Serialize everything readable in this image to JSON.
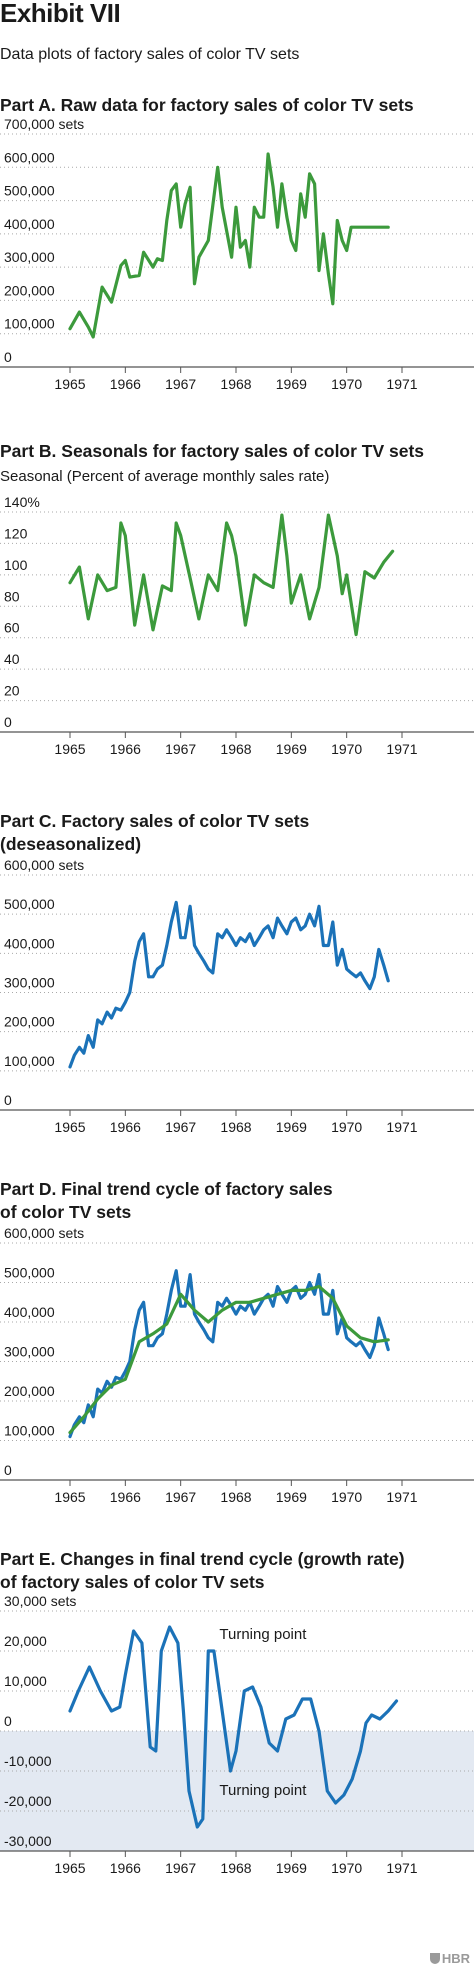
{
  "exhibit": {
    "title": "Exhibit VII",
    "subtitle": "Data plots of factory sales of color TV sets",
    "logo": "HBR"
  },
  "colors": {
    "green": "#3c9a3c",
    "blue": "#1b72b8",
    "grid": "#a9a9a9",
    "shade": "#e3e9f2"
  },
  "chart_data": [
    {
      "id": "A",
      "type": "line",
      "title": "Part A. Raw data for factory sales of color TV sets",
      "ylabel": "",
      "ylim": [
        0,
        700000
      ],
      "xlim": [
        1965,
        1972
      ],
      "yticks": [
        0,
        100000,
        200000,
        300000,
        400000,
        500000,
        600000,
        700000
      ],
      "ytick_labels": [
        "0",
        "100,000",
        "200,000",
        "300,000",
        "400,000",
        "500,000",
        "600,000",
        "700,000 sets"
      ],
      "xticks": [
        1965,
        1966,
        1967,
        1968,
        1969,
        1970,
        1971
      ],
      "xtick_labels": [
        "1965",
        "1966",
        "1967",
        "1968",
        "1969",
        "1970",
        "1971"
      ],
      "grid": true,
      "series": [
        {
          "color": "green",
          "x": [
            1965.0,
            1965.17,
            1965.33,
            1965.42,
            1965.58,
            1965.75,
            1965.92,
            1966.0,
            1966.08,
            1966.25,
            1966.33,
            1966.5,
            1966.58,
            1966.67,
            1966.75,
            1966.83,
            1966.92,
            1967.0,
            1967.08,
            1967.17,
            1967.25,
            1967.33,
            1967.5,
            1967.67,
            1967.75,
            1967.92,
            1968.0,
            1968.08,
            1968.17,
            1968.25,
            1968.33,
            1968.42,
            1968.5,
            1968.58,
            1968.67,
            1968.75,
            1968.83,
            1968.92,
            1969.0,
            1969.08,
            1969.17,
            1969.25,
            1969.33,
            1969.42,
            1969.5,
            1969.58,
            1969.67,
            1969.75,
            1969.83,
            1969.92,
            1970.0,
            1970.08,
            1970.17,
            1970.25,
            1970.33,
            1970.42,
            1970.5,
            1970.58,
            1970.75
          ],
          "y": [
            115000,
            165000,
            120000,
            90000,
            240000,
            195000,
            305000,
            320000,
            270000,
            275000,
            345000,
            300000,
            325000,
            320000,
            440000,
            530000,
            550000,
            420000,
            490000,
            540000,
            250000,
            330000,
            380000,
            600000,
            480000,
            330000,
            480000,
            360000,
            380000,
            300000,
            480000,
            450000,
            450000,
            640000,
            540000,
            420000,
            550000,
            450000,
            380000,
            350000,
            520000,
            450000,
            580000,
            550000,
            290000,
            400000,
            280000,
            190000,
            440000,
            380000,
            350000,
            420000,
            420000,
            420000,
            420000,
            420000,
            420000,
            420000,
            420000
          ]
        }
      ]
    },
    {
      "id": "B",
      "type": "line",
      "title": "Part B. Seasonals for factory sales of color TV sets",
      "ylabel": "Seasonal (Percent of average monthly sales rate)",
      "ylim": [
        0,
        140
      ],
      "xlim": [
        1965,
        1972
      ],
      "yticks": [
        0,
        20,
        40,
        60,
        80,
        100,
        120,
        140
      ],
      "ytick_labels": [
        "0",
        "20",
        "40",
        "60",
        "80",
        "100",
        "120",
        "140%"
      ],
      "xticks": [
        1965,
        1966,
        1967,
        1968,
        1969,
        1970,
        1971
      ],
      "xtick_labels": [
        "1965",
        "1966",
        "1967",
        "1968",
        "1969",
        "1970",
        "1971"
      ],
      "grid": true,
      "series": [
        {
          "color": "green",
          "x": [
            1965.0,
            1965.17,
            1965.33,
            1965.5,
            1965.67,
            1965.83,
            1965.92,
            1966.0,
            1966.17,
            1966.33,
            1966.5,
            1966.67,
            1966.83,
            1966.92,
            1967.0,
            1967.17,
            1967.33,
            1967.5,
            1967.67,
            1967.83,
            1967.92,
            1968.0,
            1968.17,
            1968.33,
            1968.5,
            1968.67,
            1968.83,
            1968.92,
            1969.0,
            1969.17,
            1969.33,
            1969.5,
            1969.67,
            1969.83,
            1969.92,
            1970.0,
            1970.17,
            1970.33,
            1970.5,
            1970.67,
            1970.83
          ],
          "y": [
            95,
            105,
            72,
            100,
            90,
            92,
            133,
            125,
            68,
            100,
            65,
            93,
            90,
            133,
            125,
            98,
            72,
            100,
            90,
            133,
            125,
            112,
            68,
            100,
            95,
            92,
            138,
            112,
            82,
            100,
            72,
            92,
            138,
            112,
            88,
            100,
            62,
            102,
            98,
            108,
            115
          ]
        }
      ]
    },
    {
      "id": "C",
      "type": "line",
      "title": "Part C. Factory sales of color TV sets (deseasonalized)",
      "title_lines": [
        "Part C. Factory sales of color TV sets",
        "(deseasonalized)"
      ],
      "ylabel": "",
      "ylim": [
        0,
        600000
      ],
      "xlim": [
        1965,
        1972
      ],
      "yticks": [
        0,
        100000,
        200000,
        300000,
        400000,
        500000,
        600000
      ],
      "ytick_labels": [
        "0",
        "100,000",
        "200,000",
        "300,000",
        "400,000",
        "500,000",
        "600,000 sets"
      ],
      "xticks": [
        1965,
        1966,
        1967,
        1968,
        1969,
        1970,
        1971
      ],
      "xtick_labels": [
        "1965",
        "1966",
        "1967",
        "1968",
        "1969",
        "1970",
        "1971"
      ],
      "grid": true,
      "series": [
        {
          "color": "blue",
          "x": [
            1965.0,
            1965.08,
            1965.17,
            1965.25,
            1965.33,
            1965.42,
            1965.5,
            1965.58,
            1965.67,
            1965.75,
            1965.83,
            1965.92,
            1966.0,
            1966.08,
            1966.17,
            1966.25,
            1966.33,
            1966.42,
            1966.5,
            1966.58,
            1966.67,
            1966.75,
            1966.83,
            1966.92,
            1967.0,
            1967.08,
            1967.17,
            1967.25,
            1967.33,
            1967.42,
            1967.5,
            1967.58,
            1967.67,
            1967.75,
            1967.83,
            1967.92,
            1968.0,
            1968.08,
            1968.17,
            1968.25,
            1968.33,
            1968.42,
            1968.5,
            1968.58,
            1968.67,
            1968.75,
            1968.83,
            1968.92,
            1969.0,
            1969.08,
            1969.17,
            1969.25,
            1969.33,
            1969.42,
            1969.5,
            1969.58,
            1969.67,
            1969.75,
            1969.83,
            1969.92,
            1970.0,
            1970.08,
            1970.17,
            1970.25,
            1970.33,
            1970.42,
            1970.5,
            1970.58,
            1970.67,
            1970.75
          ],
          "y": [
            110000,
            140000,
            160000,
            145000,
            190000,
            160000,
            230000,
            220000,
            250000,
            235000,
            260000,
            255000,
            275000,
            300000,
            380000,
            430000,
            450000,
            340000,
            340000,
            360000,
            370000,
            420000,
            480000,
            530000,
            440000,
            440000,
            520000,
            420000,
            400000,
            380000,
            360000,
            350000,
            450000,
            440000,
            460000,
            440000,
            420000,
            440000,
            430000,
            450000,
            420000,
            440000,
            460000,
            470000,
            440000,
            490000,
            470000,
            450000,
            480000,
            490000,
            460000,
            470000,
            500000,
            470000,
            520000,
            420000,
            420000,
            480000,
            370000,
            410000,
            360000,
            350000,
            340000,
            350000,
            330000,
            310000,
            340000,
            410000,
            370000,
            330000
          ]
        }
      ]
    },
    {
      "id": "D",
      "type": "line",
      "title": "Part D. Final trend cycle of factory sales of color TV sets",
      "title_lines": [
        "Part D. Final trend cycle of factory sales",
        "of color TV sets"
      ],
      "ylabel": "",
      "ylim": [
        0,
        600000
      ],
      "xlim": [
        1965,
        1972
      ],
      "yticks": [
        0,
        100000,
        200000,
        300000,
        400000,
        500000,
        600000
      ],
      "ytick_labels": [
        "0",
        "100,000",
        "200,000",
        "300,000",
        "400,000",
        "500,000",
        "600,000 sets"
      ],
      "xticks": [
        1965,
        1966,
        1967,
        1968,
        1969,
        1970,
        1971
      ],
      "xtick_labels": [
        "1965",
        "1966",
        "1967",
        "1968",
        "1969",
        "1970",
        "1971"
      ],
      "grid": true,
      "series": [
        {
          "color": "blue",
          "x": [
            1965.0,
            1965.08,
            1965.17,
            1965.25,
            1965.33,
            1965.42,
            1965.5,
            1965.58,
            1965.67,
            1965.75,
            1965.83,
            1965.92,
            1966.0,
            1966.08,
            1966.17,
            1966.25,
            1966.33,
            1966.42,
            1966.5,
            1966.58,
            1966.67,
            1966.75,
            1966.83,
            1966.92,
            1967.0,
            1967.08,
            1967.17,
            1967.25,
            1967.33,
            1967.42,
            1967.5,
            1967.58,
            1967.67,
            1967.75,
            1967.83,
            1967.92,
            1968.0,
            1968.08,
            1968.17,
            1968.25,
            1968.33,
            1968.42,
            1968.5,
            1968.58,
            1968.67,
            1968.75,
            1968.83,
            1968.92,
            1969.0,
            1969.08,
            1969.17,
            1969.25,
            1969.33,
            1969.42,
            1969.5,
            1969.58,
            1969.67,
            1969.75,
            1969.83,
            1969.92,
            1970.0,
            1970.08,
            1970.17,
            1970.25,
            1970.33,
            1970.42,
            1970.5,
            1970.58,
            1970.67,
            1970.75
          ],
          "y": [
            110000,
            140000,
            160000,
            145000,
            190000,
            160000,
            230000,
            220000,
            250000,
            235000,
            260000,
            255000,
            275000,
            300000,
            380000,
            430000,
            450000,
            340000,
            340000,
            360000,
            370000,
            420000,
            480000,
            530000,
            440000,
            440000,
            520000,
            420000,
            400000,
            380000,
            360000,
            350000,
            450000,
            440000,
            460000,
            440000,
            420000,
            440000,
            430000,
            450000,
            420000,
            440000,
            460000,
            470000,
            440000,
            490000,
            470000,
            450000,
            480000,
            490000,
            460000,
            470000,
            500000,
            470000,
            520000,
            420000,
            420000,
            480000,
            370000,
            410000,
            360000,
            350000,
            340000,
            350000,
            330000,
            310000,
            340000,
            410000,
            370000,
            330000
          ]
        },
        {
          "color": "green",
          "x": [
            1965.0,
            1965.25,
            1965.5,
            1965.75,
            1966.0,
            1966.25,
            1966.5,
            1966.75,
            1967.0,
            1967.25,
            1967.5,
            1967.75,
            1968.0,
            1968.25,
            1968.5,
            1968.75,
            1969.0,
            1969.25,
            1969.5,
            1969.75,
            1970.0,
            1970.25,
            1970.5,
            1970.75
          ],
          "y": [
            120000,
            160000,
            205000,
            240000,
            255000,
            350000,
            370000,
            395000,
            470000,
            430000,
            400000,
            430000,
            450000,
            450000,
            460000,
            470000,
            480000,
            480000,
            490000,
            460000,
            390000,
            360000,
            350000,
            355000
          ]
        }
      ]
    },
    {
      "id": "E",
      "type": "line",
      "title": "Part E. Changes in final trend cycle (growth rate) of factory sales of color TV sets",
      "title_lines": [
        "Part E. Changes in final trend cycle (growth rate)",
        "of factory sales of color TV sets"
      ],
      "ylabel": "",
      "ylim": [
        -30000,
        30000
      ],
      "xlim": [
        1965,
        1972
      ],
      "yticks": [
        -30000,
        -20000,
        -10000,
        0,
        10000,
        20000,
        30000
      ],
      "ytick_labels": [
        "-30,000",
        "-20,000",
        "-10,000",
        "0",
        "10,000",
        "20,000",
        "30,000 sets"
      ],
      "xticks": [
        1965,
        1966,
        1967,
        1968,
        1969,
        1970,
        1971
      ],
      "xtick_labels": [
        "1965",
        "1966",
        "1967",
        "1968",
        "1969",
        "1970",
        "1971"
      ],
      "grid": true,
      "negative_region_shaded": true,
      "annotations": [
        {
          "text": "Turning point",
          "x": 1967.7,
          "y": 23000
        },
        {
          "text": "Turning point",
          "x": 1967.7,
          "y": -16000
        }
      ],
      "series": [
        {
          "color": "blue",
          "x": [
            1965.0,
            1965.15,
            1965.35,
            1965.55,
            1965.75,
            1965.9,
            1966.0,
            1966.15,
            1966.3,
            1966.45,
            1966.55,
            1966.65,
            1966.8,
            1966.95,
            1967.05,
            1967.15,
            1967.3,
            1967.4,
            1967.5,
            1967.6,
            1967.75,
            1967.9,
            1968.0,
            1968.15,
            1968.3,
            1968.45,
            1968.6,
            1968.75,
            1968.9,
            1969.05,
            1969.2,
            1969.35,
            1969.5,
            1969.65,
            1969.8,
            1969.95,
            1970.1,
            1970.25,
            1970.35,
            1970.45,
            1970.6,
            1970.75,
            1970.9
          ],
          "y": [
            5000,
            10000,
            16000,
            10000,
            5000,
            6000,
            14000,
            25000,
            22000,
            -4000,
            -5000,
            20000,
            26000,
            22000,
            5000,
            -15000,
            -24000,
            -22000,
            20000,
            20000,
            5000,
            -10000,
            -5000,
            10000,
            11000,
            6000,
            -3000,
            -5000,
            3000,
            4000,
            8000,
            8000,
            0,
            -15000,
            -18000,
            -16000,
            -12000,
            -5000,
            2000,
            4000,
            3000,
            5000,
            7500
          ]
        }
      ]
    }
  ]
}
